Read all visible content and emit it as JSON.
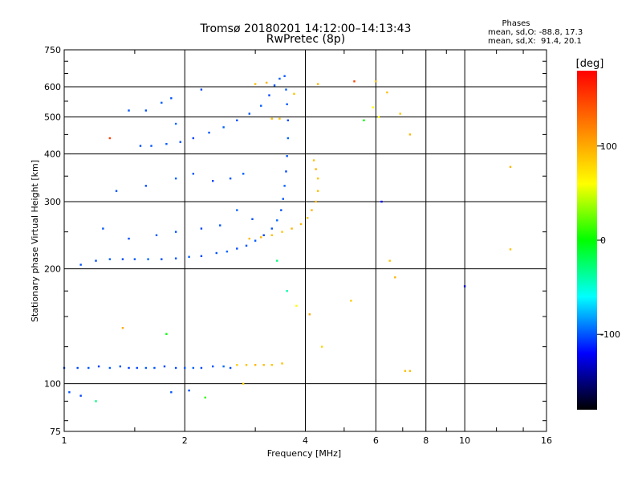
{
  "chart_data": {
    "type": "scatter",
    "title": "Tromsø 20180201 14:12:00–14:13:43",
    "subtitle": "RwPretec (8p)",
    "xlabel": "Frequency [MHz]",
    "ylabel": "Stationary phase Virtual Height [km]",
    "x_scale": "log",
    "y_scale": "log",
    "xlim": [
      1,
      16
    ],
    "ylim": [
      75,
      750
    ],
    "x_ticks": [
      "1",
      "2",
      "4",
      "6",
      "8",
      "10",
      "16"
    ],
    "y_ticks": [
      "75",
      "100",
      "200",
      "300",
      "400",
      "500",
      "600",
      "750"
    ],
    "grid": true,
    "stats": {
      "header": "Phases",
      "line1": "mean, sd,O: -88.8, 17.3",
      "line2": "mean, sd,X:  91.4, 20.1"
    },
    "colorbar": {
      "unit": "[deg]",
      "range": [
        -180,
        180
      ],
      "ticks": [
        "100",
        "0",
        "-100"
      ],
      "tick_values": [
        100,
        0,
        -100
      ],
      "colors": [
        "#ff0000",
        "#ff8000",
        "#ffff00",
        "#00ff00",
        "#00ffff",
        "#0000ff",
        "#000000"
      ]
    },
    "series": [
      {
        "mode": "O",
        "points": [
          [
            1.0,
            110,
            -105
          ],
          [
            1.08,
            110,
            -102
          ],
          [
            1.15,
            110,
            -100
          ],
          [
            1.22,
            111,
            -105
          ],
          [
            1.3,
            110,
            -98
          ],
          [
            1.38,
            111,
            -100
          ],
          [
            1.45,
            110,
            -106
          ],
          [
            1.52,
            110,
            -103
          ],
          [
            1.6,
            110,
            -99
          ],
          [
            1.68,
            110,
            -100
          ],
          [
            1.78,
            111,
            -104
          ],
          [
            1.9,
            110,
            -102
          ],
          [
            2.0,
            110,
            -100
          ],
          [
            2.1,
            110,
            -97
          ],
          [
            2.2,
            110,
            -102
          ],
          [
            2.35,
            111,
            -100
          ],
          [
            2.5,
            111,
            -95
          ],
          [
            2.6,
            110,
            -102
          ],
          [
            1.1,
            205,
            -100
          ],
          [
            1.2,
            210,
            -102
          ],
          [
            1.3,
            212,
            -98
          ],
          [
            1.4,
            212,
            -104
          ],
          [
            1.5,
            212,
            -100
          ],
          [
            1.62,
            212,
            -96
          ],
          [
            1.75,
            212,
            -102
          ],
          [
            1.9,
            213,
            -100
          ],
          [
            2.05,
            215,
            -98
          ],
          [
            2.2,
            216,
            -104
          ],
          [
            2.4,
            220,
            -100
          ],
          [
            2.55,
            222,
            -97
          ],
          [
            2.7,
            226,
            -102
          ],
          [
            2.85,
            230,
            -100
          ],
          [
            3.0,
            237,
            -98
          ],
          [
            3.15,
            245,
            -104
          ],
          [
            3.3,
            255,
            -100
          ],
          [
            3.4,
            268,
            -96
          ],
          [
            3.48,
            285,
            -102
          ],
          [
            3.52,
            305,
            -100
          ],
          [
            3.55,
            330,
            -98
          ],
          [
            3.58,
            360,
            -104
          ],
          [
            3.6,
            395,
            -100
          ],
          [
            3.62,
            440,
            -97
          ],
          [
            3.62,
            490,
            -102
          ],
          [
            3.6,
            540,
            -100
          ],
          [
            3.58,
            590,
            -98
          ],
          [
            3.55,
            640,
            -100
          ],
          [
            1.55,
            420,
            -102
          ],
          [
            1.65,
            420,
            -100
          ],
          [
            1.8,
            425,
            -98
          ],
          [
            1.95,
            430,
            -100
          ],
          [
            2.1,
            440,
            -104
          ],
          [
            2.3,
            455,
            -100
          ],
          [
            2.5,
            470,
            -97
          ],
          [
            2.7,
            490,
            -102
          ],
          [
            2.9,
            510,
            -100
          ],
          [
            3.1,
            535,
            -98
          ],
          [
            3.25,
            570,
            -104
          ],
          [
            3.35,
            605,
            -100
          ],
          [
            3.45,
            630,
            -98
          ],
          [
            1.35,
            320,
            -100
          ],
          [
            1.6,
            330,
            -102
          ],
          [
            1.9,
            345,
            -98
          ],
          [
            2.1,
            355,
            -100
          ],
          [
            2.35,
            340,
            -104
          ],
          [
            2.6,
            345,
            -100
          ],
          [
            2.8,
            355,
            -98
          ],
          [
            1.45,
            520,
            -100
          ],
          [
            1.6,
            520,
            -102
          ],
          [
            1.75,
            545,
            -98
          ],
          [
            1.85,
            560,
            -100
          ],
          [
            1.9,
            480,
            -96
          ],
          [
            2.2,
            590,
            -104
          ],
          [
            1.25,
            255,
            -100
          ],
          [
            1.45,
            240,
            -102
          ],
          [
            1.7,
            245,
            -98
          ],
          [
            1.9,
            250,
            -100
          ],
          [
            2.2,
            255,
            -104
          ],
          [
            2.45,
            260,
            -100
          ],
          [
            2.7,
            285,
            -97
          ],
          [
            2.95,
            270,
            -102
          ],
          [
            1.03,
            95,
            -100
          ],
          [
            1.1,
            93,
            -104
          ],
          [
            1.85,
            95,
            -100
          ],
          [
            2.05,
            96,
            -102
          ]
        ]
      },
      {
        "mode": "X",
        "points": [
          [
            2.7,
            112,
            85
          ],
          [
            2.85,
            112,
            90
          ],
          [
            3.0,
            112,
            95
          ],
          [
            3.15,
            112,
            92
          ],
          [
            3.3,
            112,
            88
          ],
          [
            3.5,
            113,
            90
          ],
          [
            2.9,
            240,
            92
          ],
          [
            3.1,
            242,
            95
          ],
          [
            3.3,
            245,
            90
          ],
          [
            3.5,
            250,
            88
          ],
          [
            3.7,
            255,
            95
          ],
          [
            3.9,
            262,
            92
          ],
          [
            4.05,
            272,
            90
          ],
          [
            4.15,
            285,
            95
          ],
          [
            4.25,
            300,
            92
          ],
          [
            4.3,
            320,
            90
          ],
          [
            4.3,
            345,
            88
          ],
          [
            4.25,
            365,
            95
          ],
          [
            4.2,
            385,
            90
          ],
          [
            3.0,
            610,
            90
          ],
          [
            3.2,
            615,
            95
          ],
          [
            3.3,
            495,
            92
          ],
          [
            3.45,
            495,
            88
          ],
          [
            3.75,
            575,
            90
          ],
          [
            4.3,
            610,
            95
          ],
          [
            6.0,
            620,
            92
          ],
          [
            6.4,
            580,
            90
          ],
          [
            6.9,
            510,
            88
          ],
          [
            7.3,
            450,
            95
          ],
          [
            7.1,
            108,
            90
          ],
          [
            7.3,
            108,
            92
          ],
          [
            13.0,
            370,
            95
          ],
          [
            13.0,
            225,
            90
          ]
        ]
      }
    ],
    "scattered": [
      [
        1.4,
        140,
        100
      ],
      [
        1.8,
        135,
        0
      ],
      [
        1.3,
        440,
        150
      ],
      [
        3.6,
        175,
        -40
      ],
      [
        3.8,
        160,
        60
      ],
      [
        4.1,
        152,
        100
      ],
      [
        4.4,
        125,
        80
      ],
      [
        5.2,
        165,
        85
      ],
      [
        6.2,
        300,
        -120
      ],
      [
        6.5,
        210,
        90
      ],
      [
        6.7,
        190,
        95
      ],
      [
        10.0,
        180,
        -130
      ],
      [
        3.4,
        210,
        -30
      ],
      [
        1.2,
        90,
        -30
      ],
      [
        2.25,
        92,
        10
      ],
      [
        2.8,
        100,
        80
      ],
      [
        5.6,
        490,
        0
      ],
      [
        5.9,
        530,
        60
      ],
      [
        6.1,
        500,
        60
      ],
      [
        5.3,
        620,
        150
      ]
    ]
  }
}
